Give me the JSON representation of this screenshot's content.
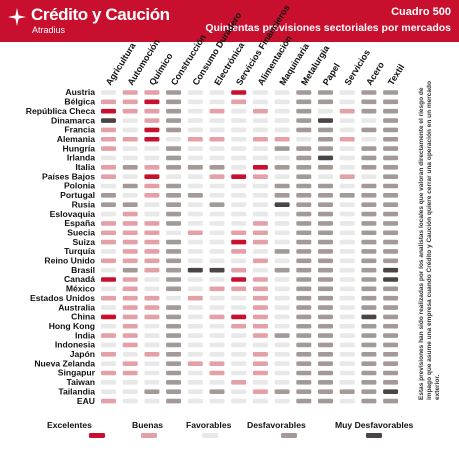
{
  "header": {
    "brand": "Crédito y Caución",
    "brand_sub": "Atradius",
    "number": "Cuadro 500",
    "subtitle": "Quinientas previsiones sectoriales por mercados"
  },
  "side_note": "Estas previsiones han sido realizadas por los analistas locales que valoran directamente el riesgo de impago que asume una empresa cuando Crédito y Caución quiere cerrar una operación en un mercado exterior.",
  "colors": {
    "Excelentes": "#c8102e",
    "Buenas": "#e4a0a7",
    "Favorables": "#e8e8e8",
    "Desfavorables": "#a39a98",
    "Muy Desfavorables": "#4a4444"
  },
  "chart_data": {
    "type": "heatmap",
    "title": "Quinientas previsiones sectoriales por mercados",
    "columns": [
      "Agricultura",
      "Automoción",
      "Químico",
      "Construcción",
      "Consumo Duradero",
      "Electrónica",
      "Servicios Financieros",
      "Alimentación",
      "Maquinaria",
      "Metalurgia",
      "Papel",
      "Servicios",
      "Acero",
      "Textil"
    ],
    "rows": [
      "Austria",
      "Bélgica",
      "República Checa",
      "Dinamarca",
      "Francia",
      "Alemania",
      "Hungría",
      "Irlanda",
      "Italia",
      "Países Bajos",
      "Polonia",
      "Portugal",
      "Rusia",
      "Eslovaquia",
      "España",
      "Suecia",
      "Suiza",
      "Turquía",
      "Reino Unido",
      "Brasil",
      "Canadá",
      "México",
      "Estados Unidos",
      "Australia",
      "China",
      "Hong Kong",
      "India",
      "Indonesia",
      "Japón",
      "Nueva Zelanda",
      "Singapur",
      "Taiwan",
      "Tailandia",
      "EAU"
    ],
    "legend": [
      "Excelentes",
      "Buenas",
      "Favorables",
      "Desfavorables",
      "Muy Desfavorables"
    ],
    "legend_position": "bottom",
    "values": [
      [
        3,
        2,
        2,
        4,
        3,
        3,
        1,
        3,
        3,
        4,
        4,
        3,
        4,
        4
      ],
      [
        2,
        2,
        1,
        4,
        3,
        3,
        2,
        3,
        3,
        4,
        4,
        3,
        4,
        4
      ],
      [
        1,
        2,
        2,
        4,
        3,
        2,
        3,
        2,
        3,
        4,
        3,
        2,
        4,
        4
      ],
      [
        5,
        3,
        2,
        4,
        3,
        3,
        3,
        3,
        3,
        4,
        5,
        3,
        3,
        4
      ],
      [
        2,
        3,
        1,
        4,
        3,
        3,
        3,
        3,
        3,
        4,
        4,
        3,
        4,
        4
      ],
      [
        2,
        2,
        1,
        3,
        2,
        2,
        3,
        2,
        2,
        3,
        4,
        2,
        3,
        4
      ],
      [
        2,
        3,
        3,
        4,
        3,
        3,
        3,
        3,
        4,
        4,
        4,
        3,
        4,
        4
      ],
      [
        3,
        3,
        3,
        4,
        3,
        3,
        3,
        3,
        3,
        4,
        5,
        3,
        4,
        4
      ],
      [
        2,
        4,
        2,
        4,
        4,
        4,
        3,
        1,
        4,
        4,
        4,
        3,
        4,
        4
      ],
      [
        2,
        3,
        1,
        3,
        3,
        2,
        1,
        2,
        3,
        4,
        3,
        2,
        3,
        4
      ],
      [
        3,
        4,
        2,
        4,
        3,
        3,
        3,
        3,
        4,
        4,
        4,
        3,
        4,
        4
      ],
      [
        4,
        3,
        2,
        4,
        4,
        3,
        3,
        3,
        4,
        4,
        4,
        4,
        4,
        4
      ],
      [
        4,
        4,
        3,
        4,
        3,
        4,
        3,
        3,
        5,
        4,
        4,
        3,
        4,
        4
      ],
      [
        3,
        2,
        3,
        4,
        3,
        3,
        3,
        3,
        3,
        4,
        4,
        3,
        4,
        4
      ],
      [
        2,
        2,
        2,
        4,
        3,
        3,
        3,
        2,
        3,
        4,
        4,
        3,
        4,
        4
      ],
      [
        2,
        2,
        2,
        3,
        2,
        3,
        2,
        2,
        3,
        4,
        4,
        3,
        4,
        4
      ],
      [
        2,
        2,
        2,
        4,
        3,
        3,
        1,
        2,
        3,
        4,
        4,
        3,
        4,
        4
      ],
      [
        3,
        2,
        2,
        4,
        3,
        3,
        2,
        3,
        4,
        4,
        4,
        3,
        4,
        4
      ],
      [
        2,
        2,
        2,
        4,
        3,
        3,
        3,
        2,
        3,
        4,
        4,
        3,
        4,
        4
      ],
      [
        3,
        4,
        2,
        4,
        5,
        5,
        2,
        3,
        4,
        4,
        4,
        3,
        4,
        5
      ],
      [
        1,
        2,
        3,
        4,
        3,
        3,
        1,
        2,
        3,
        4,
        4,
        3,
        4,
        5
      ],
      [
        3,
        2,
        3,
        4,
        3,
        2,
        2,
        2,
        3,
        4,
        4,
        3,
        4,
        4
      ],
      [
        2,
        2,
        2,
        3,
        2,
        3,
        3,
        2,
        3,
        4,
        4,
        3,
        4,
        4
      ],
      [
        3,
        2,
        2,
        4,
        3,
        3,
        3,
        2,
        3,
        4,
        4,
        3,
        4,
        4
      ],
      [
        1,
        2,
        2,
        4,
        3,
        2,
        1,
        2,
        3,
        4,
        4,
        3,
        5,
        4
      ],
      [
        3,
        2,
        3,
        4,
        3,
        3,
        2,
        2,
        3,
        4,
        4,
        3,
        4,
        4
      ],
      [
        2,
        2,
        3,
        4,
        3,
        3,
        3,
        2,
        4,
        4,
        4,
        3,
        4,
        4
      ],
      [
        3,
        2,
        3,
        4,
        3,
        3,
        3,
        3,
        3,
        4,
        4,
        3,
        4,
        4
      ],
      [
        2,
        3,
        2,
        4,
        3,
        3,
        3,
        2,
        3,
        4,
        4,
        3,
        4,
        4
      ],
      [
        3,
        2,
        3,
        4,
        2,
        2,
        3,
        2,
        3,
        4,
        4,
        3,
        4,
        4
      ],
      [
        2,
        2,
        3,
        4,
        3,
        2,
        3,
        2,
        3,
        4,
        4,
        3,
        4,
        4
      ],
      [
        3,
        3,
        3,
        4,
        3,
        3,
        2,
        3,
        3,
        4,
        4,
        3,
        4,
        4
      ],
      [
        3,
        3,
        4,
        4,
        3,
        4,
        3,
        2,
        4,
        4,
        4,
        4,
        4,
        5
      ],
      [
        2,
        3,
        3,
        4,
        3,
        3,
        3,
        3,
        3,
        4,
        4,
        3,
        4,
        4
      ]
    ]
  }
}
